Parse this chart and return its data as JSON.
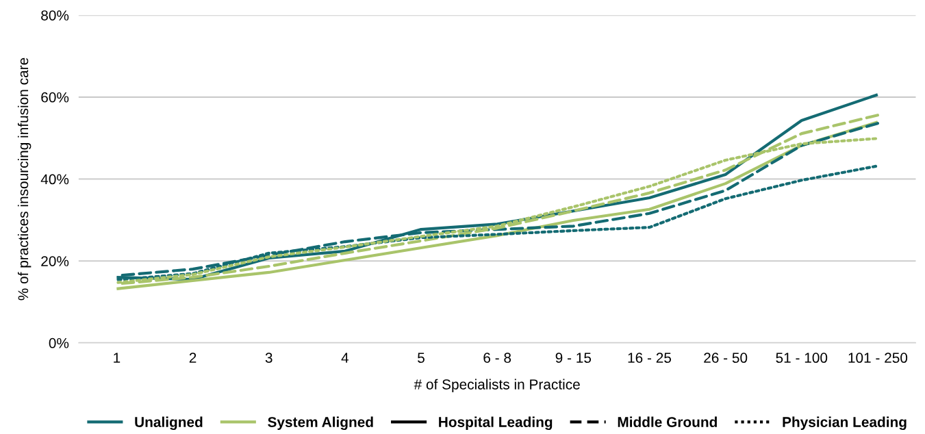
{
  "chart_data": {
    "type": "line",
    "xlabel": "# of Specialists in Practice",
    "ylabel": "% of practices insourcing infusion care",
    "categories": [
      "1",
      "2",
      "3",
      "4",
      "5",
      "6 - 8",
      "9 - 15",
      "16 - 25",
      "26 - 50",
      "51 - 100",
      "101 - 250"
    ],
    "ylim": [
      0,
      80
    ],
    "yticks": [
      {
        "value": 0,
        "label": "0%"
      },
      {
        "value": 20,
        "label": "20%"
      },
      {
        "value": 40,
        "label": "40%"
      },
      {
        "value": 60,
        "label": "60%"
      },
      {
        "value": 80,
        "label": "80%"
      }
    ],
    "grid": "y",
    "legend": "bottom",
    "marker": "none",
    "series": [
      {
        "name": "Unaligned",
        "color": "#146b73",
        "line_style": "solid",
        "values": [
          16.0,
          15.5,
          20.7,
          22.4,
          27.7,
          29.0,
          32.2,
          35.4,
          41.1,
          54.3,
          60.6
        ]
      },
      {
        "name": "System Aligned",
        "color": "#a9c46a",
        "line_style": "solid",
        "values": [
          13.2,
          15.2,
          17.2,
          20.2,
          23.2,
          26.2,
          29.9,
          32.6,
          38.9,
          48.2,
          53.9
        ]
      },
      {
        "color": "#146b73",
        "line_style": "dashed",
        "values": [
          16.4,
          18.0,
          21.4,
          24.7,
          26.9,
          27.7,
          28.5,
          31.6,
          37.2,
          48.2,
          53.6
        ]
      },
      {
        "color": "#a9c46a",
        "line_style": "dashed",
        "values": [
          14.4,
          16.0,
          18.7,
          21.9,
          24.9,
          28.0,
          32.2,
          36.6,
          42.2,
          51.1,
          55.6
        ]
      },
      {
        "color": "#146b73",
        "line_style": "dotted",
        "values": [
          15.4,
          16.9,
          21.9,
          23.5,
          25.7,
          26.5,
          27.4,
          28.2,
          35.2,
          39.7,
          43.2
        ]
      },
      {
        "color": "#a9c46a",
        "line_style": "dotted",
        "values": [
          14.7,
          16.7,
          21.0,
          23.4,
          26.0,
          28.5,
          33.2,
          38.2,
          44.6,
          48.6,
          49.9
        ]
      },
      {
        "name": "Hospital Leading",
        "color": "#000000",
        "line_style": "solid",
        "values": [
          null,
          null,
          null,
          null,
          null,
          null,
          null,
          null,
          null,
          null,
          null
        ]
      },
      {
        "name": "Middle Ground",
        "color": "#000000",
        "line_style": "dashed",
        "values": [
          null,
          null,
          null,
          null,
          null,
          null,
          null,
          null,
          null,
          null,
          null
        ]
      },
      {
        "name": "Physician Leading",
        "color": "#000000",
        "line_style": "dotted",
        "values": [
          null,
          null,
          null,
          null,
          null,
          null,
          null,
          null,
          null,
          null,
          null
        ]
      }
    ]
  }
}
